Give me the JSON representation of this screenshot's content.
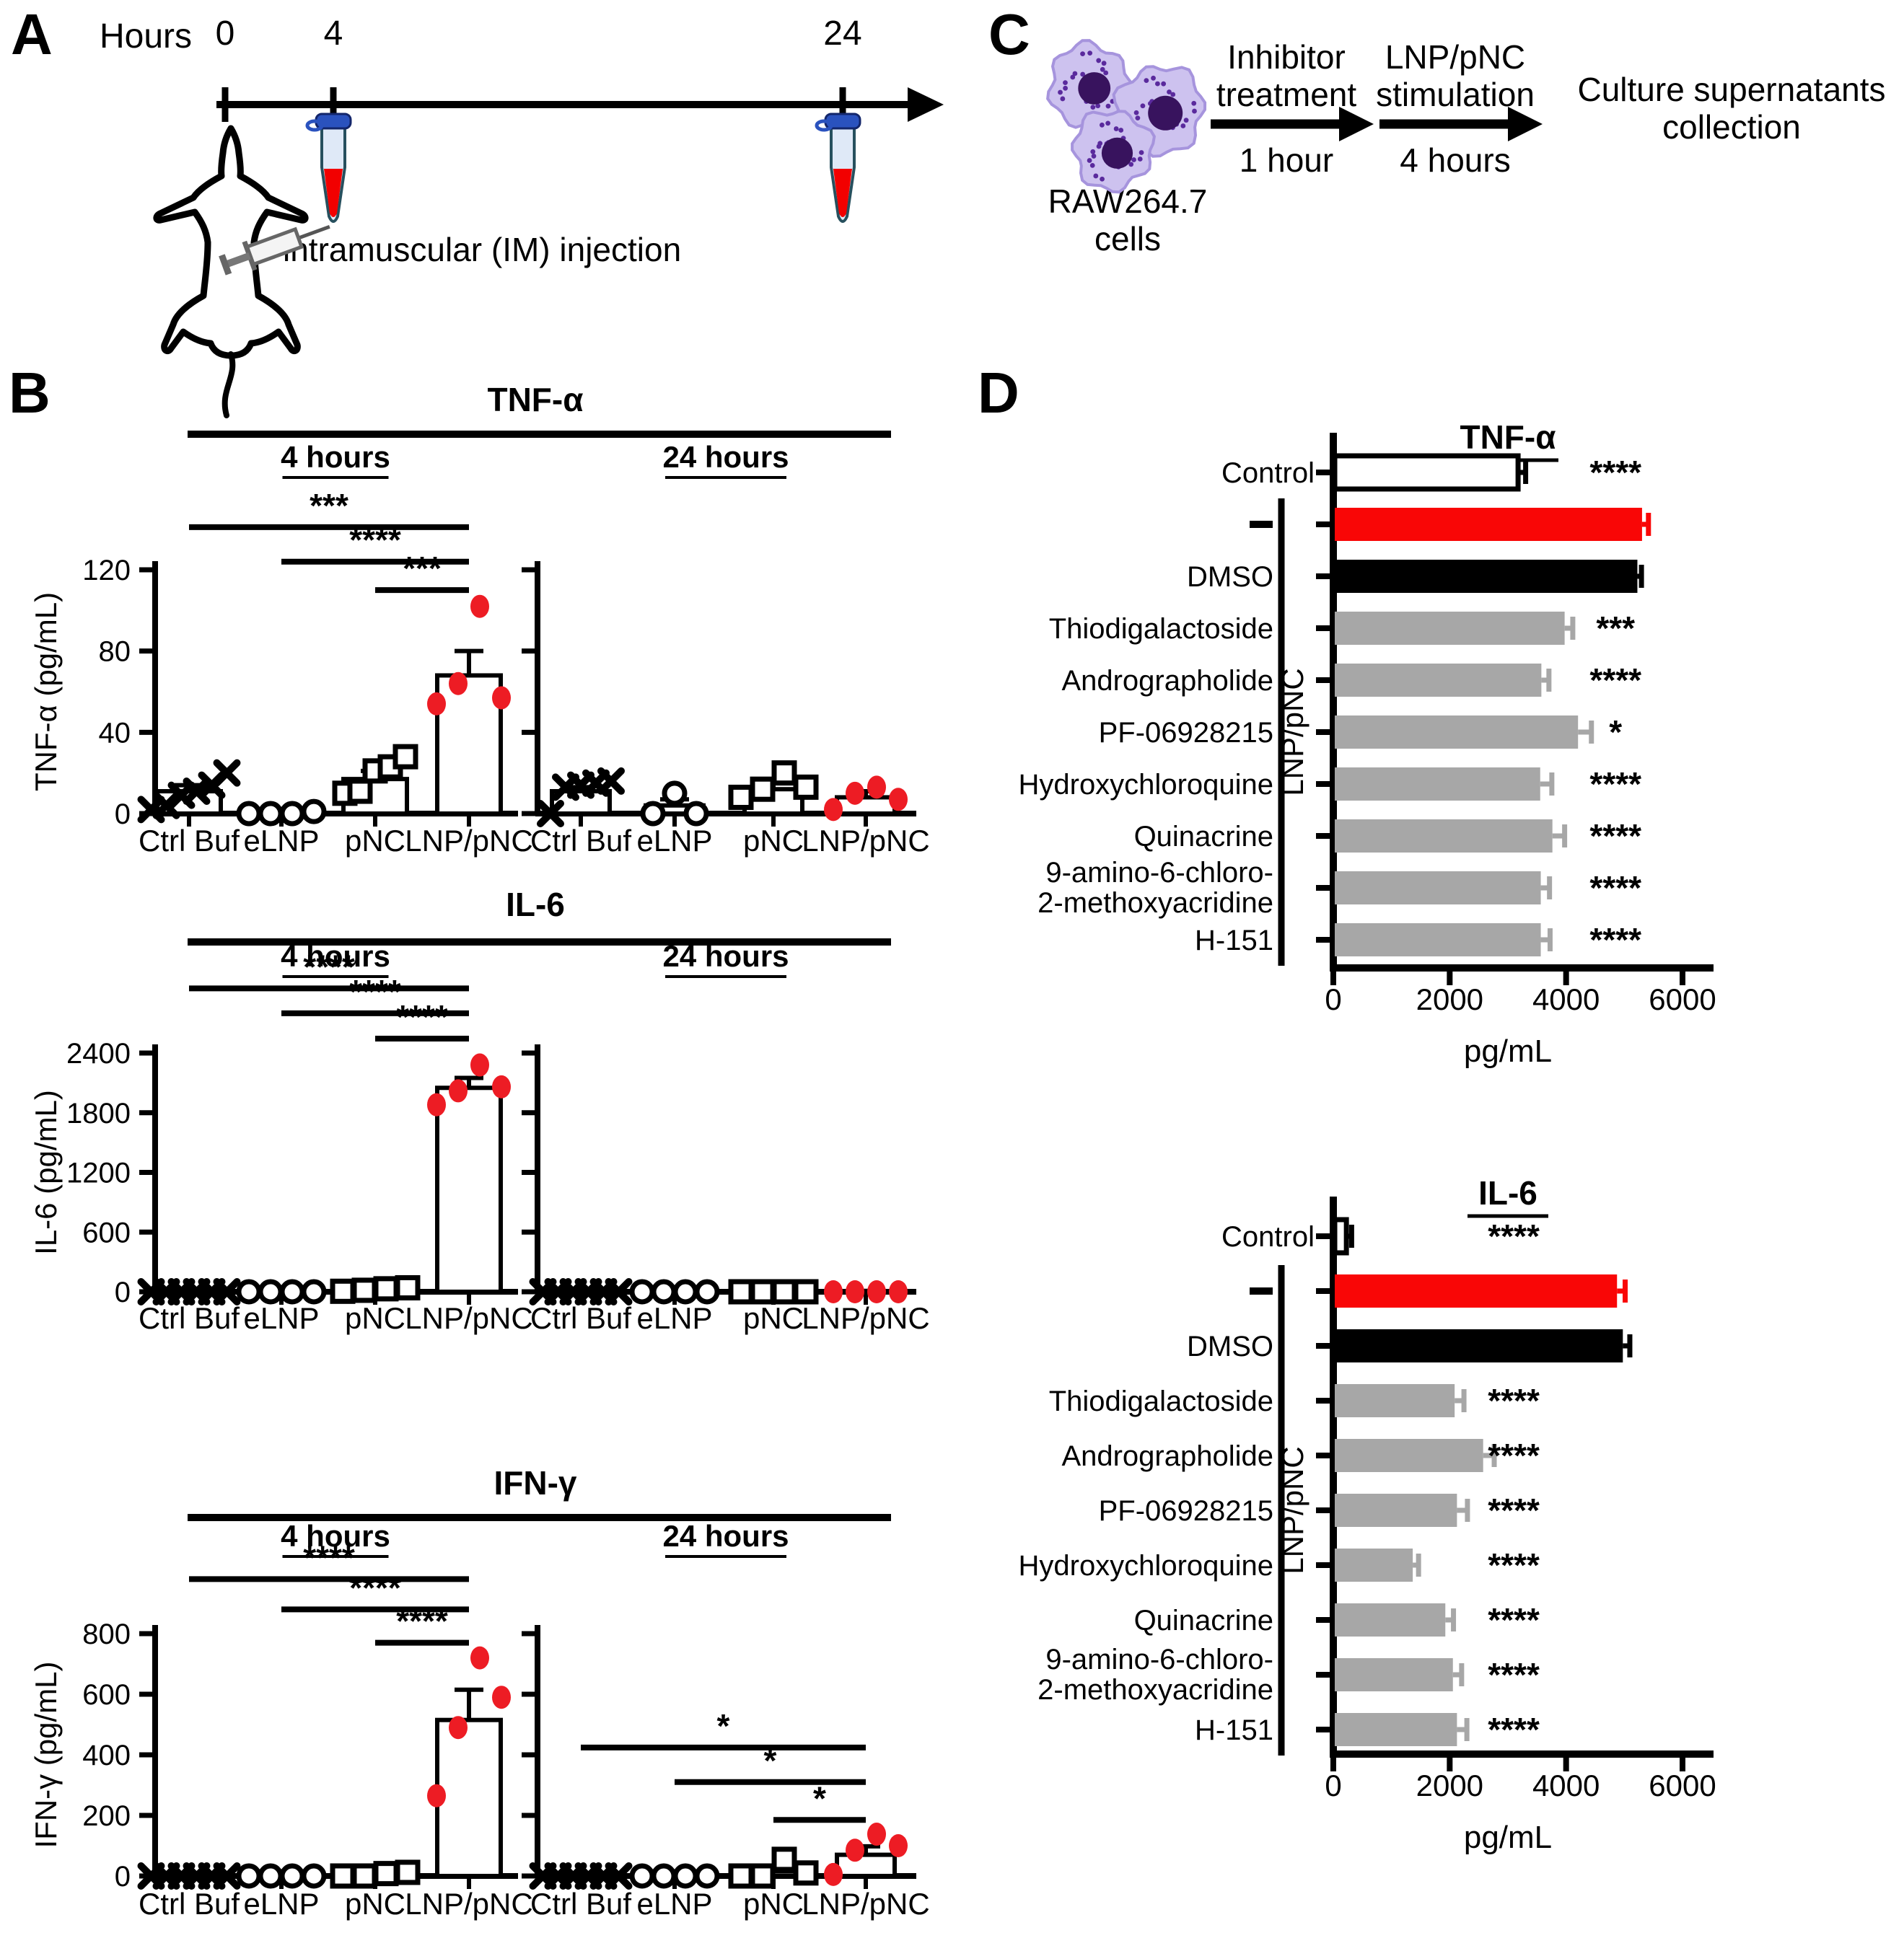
{
  "colors": {
    "black": "#000000",
    "white": "#ffffff",
    "red_bar": "#f90606",
    "red_dot": "#ed1c24",
    "gray_bar": "#a7a7a7",
    "cell_body": "#cdc2ef",
    "cell_edge": "#a globally",
    " cell_unused": "",
    "cell_outline": "#a694dd",
    "cell_nucleus": "#38135e",
    "cell_speckle": "#5a2a9d",
    "tube_cap": "#2a52be",
    "tube_body": "#dfe9f7",
    "tube_outline": "#27505e",
    "tube_blood": "#f20000"
  },
  "panelA": {
    "letter": "A",
    "axis_label": "Hours",
    "t0": "0",
    "t4": "4",
    "t24": "24",
    "injection_label": "intramuscular (IM) injection",
    "icons": [
      "timeline-arrow",
      "blood-tube-icon",
      "mouse-icon",
      "syringe-icon"
    ]
  },
  "panelB": {
    "letter": "B"
  },
  "panelC": {
    "letter": "C",
    "cells_line1": "RAW264.7",
    "cells_line2": "cells",
    "step1_line1": "Inhibitor",
    "step1_line2": "treatment",
    "step1_time": "1 hour",
    "step2_line1": "LNP/pNC",
    "step2_line2": "stimulation",
    "step2_time": "4 hours",
    "result_line1": "Culture supernatants",
    "result_line2": "collection"
  },
  "panelD": {
    "letter": "D"
  },
  "chart_data": [
    {
      "id": "B-TNF",
      "type": "bar",
      "subtype": "grouped-scatter-bar",
      "title": "TNF-α",
      "ylabel": "TNF-α (pg/mL)",
      "ylim": [
        0,
        120
      ],
      "yticks": [
        0,
        40,
        80,
        120
      ],
      "group_labels": [
        "Ctrl Buf",
        "eLNP",
        "pNC",
        "LNP/pNC"
      ],
      "subpanels": [
        {
          "label": "4 hours",
          "groups": [
            {
              "name": "Ctrl Buf",
              "marker": "x",
              "mean": 11,
              "sem": 3,
              "points": [
                2,
                4,
                9,
                11,
                14,
                20
              ]
            },
            {
              "name": "eLNP",
              "marker": "circle",
              "mean": 1,
              "sem": 1,
              "points": [
                0,
                0,
                0,
                1
              ]
            },
            {
              "name": "pNC",
              "marker": "square",
              "mean": 17,
              "sem": 4,
              "points": [
                10,
                11,
                21,
                23,
                28
              ]
            },
            {
              "name": "LNP/pNC",
              "marker": "dot",
              "mean": 68,
              "sem": 12,
              "points": [
                54,
                64,
                102,
                57
              ]
            }
          ]
        },
        {
          "label": "24 hours",
          "groups": [
            {
              "name": "Ctrl Buf",
              "marker": "x",
              "mean": 11,
              "sem": 2,
              "points": [
                0,
                13,
                14,
                15,
                16
              ]
            },
            {
              "name": "eLNP",
              "marker": "circle",
              "mean": 4,
              "sem": 3,
              "points": [
                0,
                10,
                0
              ]
            },
            {
              "name": "pNC",
              "marker": "square",
              "mean": 12,
              "sem": 3,
              "points": [
                8,
                12,
                20,
                13
              ]
            },
            {
              "name": "LNP/pNC",
              "marker": "dot",
              "mean": 8,
              "sem": 3,
              "points": [
                2,
                10,
                13,
                7
              ]
            }
          ]
        }
      ],
      "significance": [
        {
          "from": 0,
          "to": 3,
          "label": "***",
          "y": 141
        },
        {
          "from": 1,
          "to": 3,
          "label": "****",
          "y": 124
        },
        {
          "from": 2,
          "to": 3,
          "label": "***",
          "y": 110
        }
      ]
    },
    {
      "id": "B-IL6",
      "type": "bar",
      "subtype": "grouped-scatter-bar",
      "title": "IL-6",
      "ylabel": "IL-6 (pg/mL)",
      "ylim": [
        0,
        2400
      ],
      "yticks": [
        0,
        600,
        1200,
        1800,
        2400
      ],
      "group_labels": [
        "Ctrl Buf",
        "eLNP",
        "pNC",
        "LNP/pNC"
      ],
      "subpanels": [
        {
          "label": "4 hours",
          "groups": [
            {
              "name": "Ctrl Buf",
              "marker": "x",
              "mean": 5,
              "sem": 2,
              "points": [
                0,
                0,
                0,
                0,
                0,
                0
              ]
            },
            {
              "name": "eLNP",
              "marker": "circle",
              "mean": 5,
              "sem": 2,
              "points": [
                0,
                0,
                0,
                0
              ]
            },
            {
              "name": "pNC",
              "marker": "square",
              "mean": 25,
              "sem": 10,
              "points": [
                5,
                15,
                30,
                40
              ]
            },
            {
              "name": "LNP/pNC",
              "marker": "dot",
              "mean": 2050,
              "sem": 100,
              "points": [
                1880,
                2020,
                2280,
                2060
              ]
            }
          ]
        },
        {
          "label": "24 hours",
          "groups": [
            {
              "name": "Ctrl Buf",
              "marker": "x",
              "mean": 3,
              "sem": 1,
              "points": [
                0,
                0,
                0,
                0,
                0,
                0
              ]
            },
            {
              "name": "eLNP",
              "marker": "circle",
              "mean": 3,
              "sem": 1,
              "points": [
                0,
                0,
                0,
                0
              ]
            },
            {
              "name": "pNC",
              "marker": "square",
              "mean": 5,
              "sem": 3,
              "points": [
                0,
                0,
                0,
                0
              ]
            },
            {
              "name": "LNP/pNC",
              "marker": "dot",
              "mean": 5,
              "sem": 4,
              "points": [
                0,
                0,
                0,
                0
              ]
            }
          ]
        }
      ],
      "significance": [
        {
          "from": 0,
          "to": 3,
          "label": "****",
          "y": 3050
        },
        {
          "from": 1,
          "to": 3,
          "label": "****",
          "y": 2800
        },
        {
          "from": 2,
          "to": 3,
          "label": "****",
          "y": 2545
        }
      ]
    },
    {
      "id": "B-IFNG",
      "type": "bar",
      "subtype": "grouped-scatter-bar",
      "title": "IFN-γ",
      "ylabel": "IFN-γ (pg/mL)",
      "ylim": [
        0,
        800
      ],
      "yticks": [
        0,
        200,
        400,
        600,
        800
      ],
      "group_labels": [
        "Ctrl Buf",
        "eLNP",
        "pNC",
        "LNP/pNC"
      ],
      "subpanels": [
        {
          "label": "4 hours",
          "groups": [
            {
              "name": "Ctrl Buf",
              "marker": "x",
              "mean": 2,
              "sem": 1,
              "points": [
                0,
                0,
                0,
                0,
                0,
                0
              ]
            },
            {
              "name": "eLNP",
              "marker": "circle",
              "mean": 2,
              "sem": 1,
              "points": [
                0,
                0,
                0,
                0
              ]
            },
            {
              "name": "pNC",
              "marker": "square",
              "mean": 5,
              "sem": 4,
              "points": [
                0,
                0,
                8,
                12
              ]
            },
            {
              "name": "LNP/pNC",
              "marker": "dot",
              "mean": 515,
              "sem": 100,
              "points": [
                265,
                490,
                720,
                590
              ]
            }
          ]
        },
        {
          "label": "24 hours",
          "groups": [
            {
              "name": "Ctrl Buf",
              "marker": "x",
              "mean": 2,
              "sem": 1,
              "points": [
                0,
                0,
                0,
                0,
                0,
                0
              ]
            },
            {
              "name": "eLNP",
              "marker": "circle",
              "mean": 2,
              "sem": 1,
              "points": [
                0,
                0,
                0,
                0
              ]
            },
            {
              "name": "pNC",
              "marker": "square",
              "mean": 15,
              "sem": 12,
              "points": [
                0,
                0,
                55,
                10
              ]
            },
            {
              "name": "LNP/pNC",
              "marker": "dot",
              "mean": 70,
              "sem": 28,
              "points": [
                5,
                85,
                138,
                100
              ]
            }
          ]
        }
      ],
      "significance": [
        {
          "from": 0,
          "to": 3,
          "label": "****",
          "y": 980
        },
        {
          "from": 1,
          "to": 3,
          "label": "****",
          "y": 880
        },
        {
          "from": 2,
          "to": 3,
          "label": "****",
          "y": 770
        },
        {
          "from": 4,
          "to": 7,
          "label": "*",
          "y": 424
        },
        {
          "from": 5,
          "to": 7,
          "label": "*",
          "y": 310
        },
        {
          "from": 6,
          "to": 7,
          "label": "*",
          "y": 185
        }
      ]
    },
    {
      "id": "D-TNF",
      "type": "bar",
      "subtype": "horizontal-bar",
      "title": "TNF-α",
      "xlabel": "pg/mL",
      "xlim": [
        0,
        6000
      ],
      "xticks": [
        0,
        2000,
        4000,
        6000
      ],
      "bracket_label": "LNP/pNC",
      "bracket_rows": [
        1,
        9
      ],
      "sig_x": 4850,
      "rows": [
        {
          "label": "Control",
          "value": 3150,
          "sem": 130,
          "color": "#ffffff",
          "sig": "****"
        },
        {
          "label": "-",
          "value": 5280,
          "sem": 110,
          "color": "#f90606",
          "sig": ""
        },
        {
          "label": "DMSO",
          "value": 5200,
          "sem": 70,
          "color": "#000000",
          "sig": ""
        },
        {
          "label": "Thiodigalactoside",
          "value": 3950,
          "sem": 140,
          "color": "#a7a7a7",
          "sig": "***"
        },
        {
          "label": "Andrographolide",
          "value": 3550,
          "sem": 130,
          "color": "#a7a7a7",
          "sig": "****"
        },
        {
          "label": "PF-06928215",
          "value": 4180,
          "sem": 230,
          "color": "#a7a7a7",
          "sig": "*"
        },
        {
          "label": "Hydroxychloroquine",
          "value": 3530,
          "sem": 200,
          "color": "#a7a7a7",
          "sig": "****"
        },
        {
          "label": "Quinacrine",
          "value": 3740,
          "sem": 210,
          "color": "#a7a7a7",
          "sig": "****"
        },
        {
          "label": [
            "9-amino-6-chloro-",
            "2-methoxyacridine"
          ],
          "value": 3540,
          "sem": 150,
          "color": "#a7a7a7",
          "sig": "****"
        },
        {
          "label": "H-151",
          "value": 3540,
          "sem": 160,
          "color": "#a7a7a7",
          "sig": "****"
        }
      ]
    },
    {
      "id": "D-IL6",
      "type": "bar",
      "subtype": "horizontal-bar",
      "title": "IL-6",
      "xlabel": "pg/mL",
      "xlim": [
        0,
        6000
      ],
      "xticks": [
        0,
        2000,
        4000,
        6000
      ],
      "bracket_label": "LNP/pNC",
      "bracket_rows": [
        1,
        9
      ],
      "sig_x": 3100,
      "rows": [
        {
          "label": "Control",
          "value": 200,
          "sem": 90,
          "color": "#ffffff",
          "sig": "****"
        },
        {
          "label": "-",
          "value": 4850,
          "sem": 140,
          "color": "#f90606",
          "sig": ""
        },
        {
          "label": "DMSO",
          "value": 4950,
          "sem": 120,
          "color": "#000000",
          "sig": ""
        },
        {
          "label": "Thiodigalactoside",
          "value": 2060,
          "sem": 160,
          "color": "#a7a7a7",
          "sig": "****"
        },
        {
          "label": "Andrographolide",
          "value": 2550,
          "sem": 190,
          "color": "#a7a7a7",
          "sig": "****"
        },
        {
          "label": "PF-06928215",
          "value": 2100,
          "sem": 180,
          "color": "#a7a7a7",
          "sig": "****"
        },
        {
          "label": "Hydroxychloroquine",
          "value": 1340,
          "sem": 100,
          "color": "#a7a7a7",
          "sig": "****"
        },
        {
          "label": "Quinacrine",
          "value": 1900,
          "sem": 140,
          "color": "#a7a7a7",
          "sig": "****"
        },
        {
          "label": [
            "9-amino-6-chloro-",
            "2-methoxyacridine"
          ],
          "value": 2030,
          "sem": 150,
          "color": "#a7a7a7",
          "sig": "****"
        },
        {
          "label": "H-151",
          "value": 2100,
          "sem": 170,
          "color": "#a7a7a7",
          "sig": "****"
        }
      ]
    }
  ]
}
